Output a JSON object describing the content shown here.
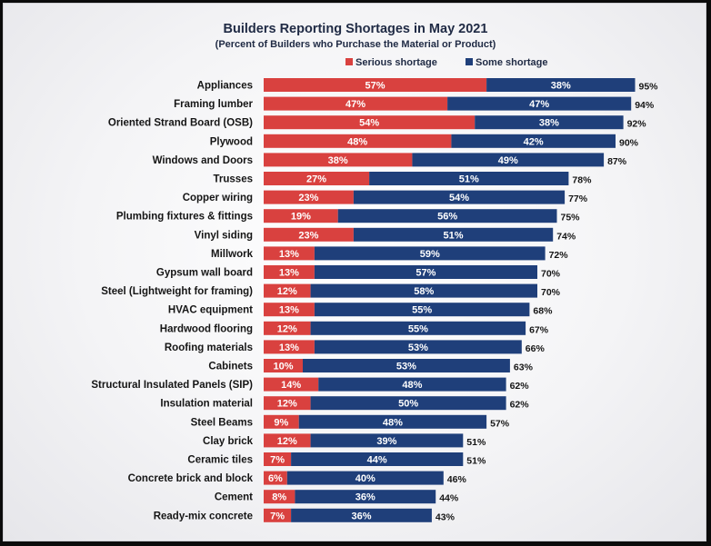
{
  "chart_data": {
    "type": "bar",
    "orientation": "horizontal",
    "stacked": true,
    "title": "Builders Reporting Shortages in May 2021",
    "subtitle": "(Percent of Builders who Purchase the Material or Product)",
    "legend_position": "top",
    "grid": false,
    "xlim": [
      0,
      100
    ],
    "categories": [
      "Appliances",
      "Framing lumber",
      "Oriented Strand Board (OSB)",
      "Plywood",
      "Windows and Doors",
      "Trusses",
      "Copper wiring",
      "Plumbing fixtures & fittings",
      "Vinyl siding",
      "Millwork",
      "Gypsum wall board",
      "Steel (Lightweight for framing)",
      "HVAC equipment",
      "Hardwood flooring",
      "Roofing materials",
      "Cabinets",
      "Structural Insulated Panels (SIP)",
      "Insulation material",
      "Steel Beams",
      "Clay brick",
      "Ceramic tiles",
      "Concrete brick and block",
      "Cement",
      "Ready-mix concrete"
    ],
    "series": [
      {
        "name": "Serious shortage",
        "color": "#d9413f",
        "values": [
          57,
          47,
          54,
          48,
          38,
          27,
          23,
          19,
          23,
          13,
          13,
          12,
          13,
          12,
          13,
          10,
          14,
          12,
          9,
          12,
          7,
          6,
          8,
          7
        ],
        "labels": [
          "57%",
          "47%",
          "54%",
          "48%",
          "38%",
          "27%",
          "23%",
          "19%",
          "23%",
          "13%",
          "13%",
          "12%",
          "13%",
          "12%",
          "13%",
          "10%",
          "14%",
          "12%",
          "9%",
          "12%",
          "7%",
          "6%",
          "8%",
          "7%"
        ]
      },
      {
        "name": "Some shortage",
        "color": "#1f3f7a",
        "values": [
          38,
          47,
          38,
          42,
          49,
          51,
          54,
          56,
          51,
          59,
          57,
          58,
          55,
          55,
          53,
          53,
          48,
          50,
          48,
          39,
          44,
          40,
          36,
          36
        ],
        "labels": [
          "38%",
          "47%",
          "38%",
          "42%",
          "49%",
          "51%",
          "54%",
          "56%",
          "51%",
          "59%",
          "57%",
          "58%",
          "55%",
          "55%",
          "53%",
          "53%",
          "48%",
          "50%",
          "48%",
          "39%",
          "44%",
          "40%",
          "36%",
          "36%"
        ]
      }
    ],
    "totals": [
      95,
      94,
      92,
      90,
      87,
      78,
      77,
      75,
      74,
      72,
      70,
      70,
      68,
      67,
      66,
      63,
      62,
      62,
      57,
      51,
      51,
      46,
      44,
      43
    ],
    "total_labels": [
      "95%",
      "94%",
      "92%",
      "90%",
      "87%",
      "78%",
      "77%",
      "75%",
      "74%",
      "72%",
      "70%",
      "70%",
      "68%",
      "67%",
      "66%",
      "63%",
      "62%",
      "62%",
      "57%",
      "51%",
      "51%",
      "46%",
      "44%",
      "43%"
    ]
  }
}
